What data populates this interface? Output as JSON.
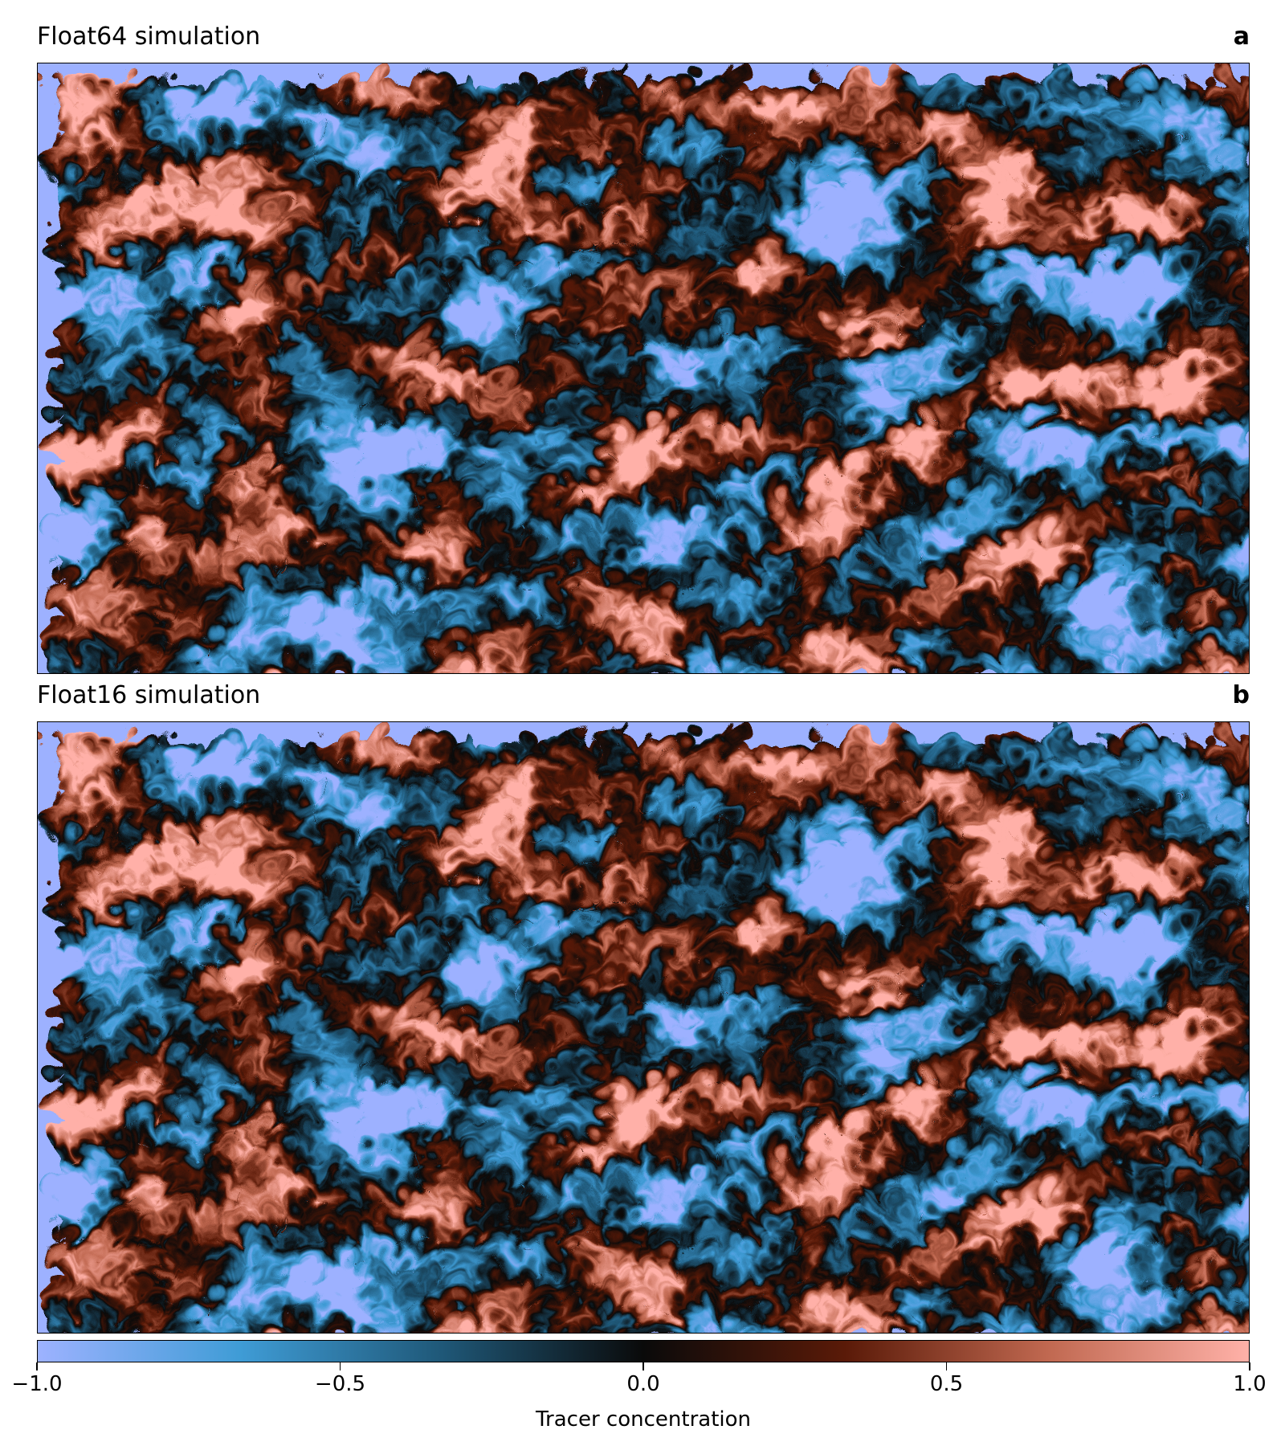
{
  "panels": [
    {
      "title": "Float64 simulation",
      "letter": "a"
    },
    {
      "title": "Float16 simulation",
      "letter": "b"
    }
  ],
  "colorbar": {
    "label": "Tracer concentration",
    "ticks": [
      {
        "value": -1.0,
        "label": "−1.0"
      },
      {
        "value": -0.5,
        "label": "−0.5"
      },
      {
        "value": 0.0,
        "label": "0.0"
      },
      {
        "value": 0.5,
        "label": "0.5"
      },
      {
        "value": 1.0,
        "label": "1.0"
      }
    ]
  },
  "chart_data": [
    {
      "type": "heatmap",
      "title": "Float64 simulation",
      "panel": "a",
      "quantity": "Tracer concentration",
      "vmin": -1.0,
      "vmax": 1.0,
      "colormap": [
        "#9db2ff",
        "#3f9cd6",
        "#1f5878",
        "#0a0a0a",
        "#5a1a08",
        "#c06850",
        "#ffb1a8"
      ],
      "axes_visible": false
    },
    {
      "type": "heatmap",
      "title": "Float16 simulation",
      "panel": "b",
      "quantity": "Tracer concentration",
      "vmin": -1.0,
      "vmax": 1.0,
      "colormap": [
        "#9db2ff",
        "#3f9cd6",
        "#1f5878",
        "#0a0a0a",
        "#5a1a08",
        "#c06850",
        "#ffb1a8"
      ],
      "axes_visible": false
    }
  ]
}
